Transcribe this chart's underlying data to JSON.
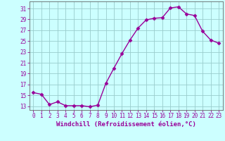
{
  "x": [
    0,
    1,
    2,
    3,
    4,
    5,
    6,
    7,
    8,
    9,
    10,
    11,
    12,
    13,
    14,
    15,
    16,
    17,
    18,
    19,
    20,
    21,
    22,
    23
  ],
  "y": [
    15.5,
    15.2,
    13.3,
    13.8,
    13.1,
    13.1,
    13.1,
    12.9,
    13.2,
    17.2,
    20.0,
    22.7,
    25.2,
    27.4,
    28.9,
    29.2,
    29.3,
    31.1,
    31.3,
    30.0,
    29.7,
    26.8,
    25.2,
    24.6
  ],
  "line_color": "#990099",
  "marker": "D",
  "markersize": 2.5,
  "linewidth": 1.0,
  "background_color": "#ccffff",
  "grid_color": "#99cccc",
  "xlabel": "Windchill (Refroidissement éolien,°C)",
  "xlabel_color": "#990099",
  "xlabel_fontsize": 6.5,
  "tick_color": "#990099",
  "tick_fontsize": 5.5,
  "ytick_start": 13,
  "ytick_end": 31,
  "ytick_step": 2,
  "xlim": [
    -0.5,
    23.5
  ],
  "ylim": [
    12.3,
    32.3
  ]
}
